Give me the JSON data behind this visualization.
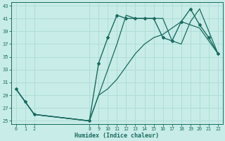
{
  "xlabel": "Humidex (Indice chaleur)",
  "bg_color": "#c8ece8",
  "grid_color": "#b0ddd8",
  "line_color": "#1a6b60",
  "line1_x": [
    0,
    1,
    2,
    8,
    9,
    10,
    11,
    12,
    13,
    14,
    15,
    16,
    17,
    18,
    19,
    20,
    21,
    22
  ],
  "line1_y": [
    30,
    28,
    26,
    25,
    34,
    38,
    41.5,
    41,
    41,
    41,
    41,
    38,
    37.5,
    40.5,
    42.5,
    40,
    38,
    35.5
  ],
  "line2_x": [
    0,
    2,
    8,
    9,
    10,
    11,
    12,
    13,
    14,
    15,
    16,
    17,
    18,
    19,
    20,
    22
  ],
  "line2_y": [
    30,
    26,
    25,
    29,
    33,
    37,
    41.5,
    41,
    41,
    41,
    41,
    37.5,
    37,
    40.5,
    42.5,
    35.5
  ],
  "line3_x": [
    0,
    2,
    8,
    9,
    10,
    11,
    12,
    13,
    14,
    15,
    16,
    17,
    18,
    19,
    20,
    22
  ],
  "line3_y": [
    30,
    26,
    25,
    29,
    30,
    31.5,
    33.5,
    35.5,
    37,
    38,
    38.5,
    39.5,
    40.5,
    40,
    39.5,
    35.5
  ],
  "xlim": [
    -0.5,
    22.5
  ],
  "ylim": [
    24.5,
    43.5
  ],
  "yticks": [
    25,
    27,
    29,
    31,
    33,
    35,
    37,
    39,
    41,
    43
  ],
  "xticks": [
    0,
    1,
    2,
    8,
    9,
    10,
    11,
    12,
    13,
    14,
    15,
    16,
    17,
    18,
    19,
    20,
    21,
    22
  ]
}
